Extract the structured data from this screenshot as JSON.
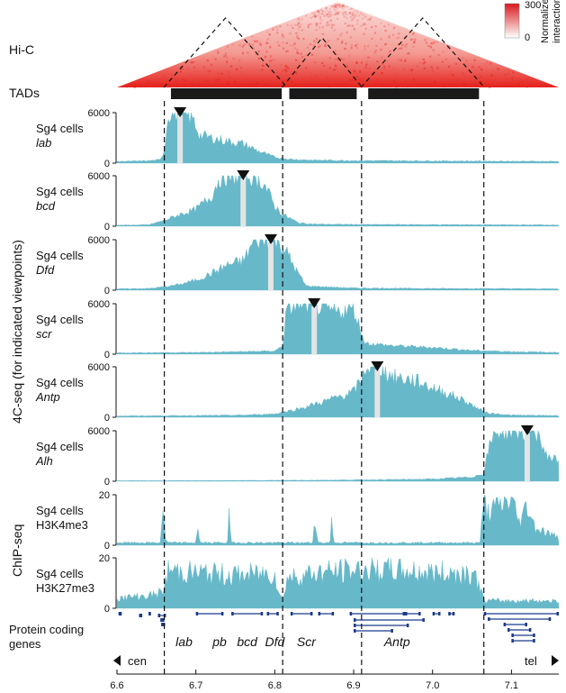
{
  "section_labels": {
    "hic": "Hi-C",
    "tads": "TADs",
    "fourc": "4C-seq (for indicated viewpoints)",
    "chip": "ChIP-seq",
    "genes": [
      "Protein coding",
      "genes"
    ]
  },
  "hic_colorbar": {
    "max_label": "300",
    "min_label": "0",
    "title_lines": [
      "Normalized",
      "interactions"
    ],
    "color_low": "#ffffff",
    "color_high": "#d7191c"
  },
  "colors": {
    "track_fill": "#67b8c9",
    "track_fill_light": "#a9d8e2",
    "viewpoint_gap": "#e4e4e4",
    "tad_bar": "#1a1a1a",
    "hic_red": "#e5211c",
    "saturation_line": "#b65e8a"
  },
  "chart_data": {
    "type": "area",
    "xlabel": "",
    "xlim": [
      6.6,
      7.16
    ],
    "x_ticks": [
      "6.6",
      "6.7",
      "6.8",
      "6.9",
      "7.0",
      "7.1"
    ],
    "x_tick_values": [
      6.6,
      6.7,
      6.8,
      6.9,
      7.0,
      7.1
    ],
    "tad_boundaries": [
      6.66,
      6.81,
      6.91,
      7.065
    ],
    "tads": [
      [
        6.665,
        6.81
      ],
      [
        6.815,
        6.905
      ],
      [
        6.915,
        7.06
      ]
    ],
    "tracks": [
      {
        "cell": "Sg4 cells",
        "target": "lab",
        "group": "4C-seq",
        "ylim": [
          0,
          6000
        ],
        "y_ticks": [
          "0",
          "6000"
        ],
        "viewpoint": 6.68,
        "x": [
          6.6,
          6.62,
          6.64,
          6.655,
          6.66,
          6.665,
          6.68,
          6.695,
          6.705,
          6.72,
          6.74,
          6.76,
          6.78,
          6.8,
          6.82,
          6.85,
          6.9,
          6.95,
          7.0,
          7.05,
          7.1,
          7.16
        ],
        "values": [
          200,
          230,
          280,
          400,
          1500,
          5900,
          6000,
          5500,
          3300,
          3000,
          2600,
          2300,
          1400,
          700,
          450,
          350,
          300,
          280,
          260,
          240,
          220,
          200
        ]
      },
      {
        "cell": "Sg4 cells",
        "target": "bcd",
        "group": "4C-seq",
        "ylim": [
          0,
          6000
        ],
        "y_ticks": [
          "0",
          "6000"
        ],
        "viewpoint": 6.76,
        "x": [
          6.6,
          6.64,
          6.66,
          6.68,
          6.7,
          6.72,
          6.73,
          6.75,
          6.77,
          6.785,
          6.8,
          6.81,
          6.83,
          6.85,
          6.9,
          6.95,
          7.0,
          7.05,
          7.1,
          7.16
        ],
        "values": [
          120,
          160,
          700,
          1400,
          2000,
          3600,
          5800,
          6000,
          6000,
          5300,
          2400,
          1400,
          400,
          250,
          200,
          200,
          180,
          180,
          160,
          150
        ]
      },
      {
        "cell": "Sg4 cells",
        "target": "Dfd",
        "group": "4C-seq",
        "ylim": [
          0,
          6000
        ],
        "y_ticks": [
          "0",
          "6000"
        ],
        "viewpoint": 6.795,
        "x": [
          6.6,
          6.64,
          6.66,
          6.68,
          6.7,
          6.72,
          6.74,
          6.76,
          6.775,
          6.79,
          6.805,
          6.815,
          6.825,
          6.84,
          6.9,
          6.95,
          7.0,
          7.05,
          7.1,
          7.16
        ],
        "values": [
          150,
          200,
          400,
          700,
          1200,
          2000,
          3000,
          3500,
          6000,
          6000,
          5900,
          4500,
          2700,
          500,
          250,
          230,
          200,
          200,
          180,
          160
        ]
      },
      {
        "cell": "Sg4 cells",
        "target": "scr",
        "group": "4C-seq",
        "ylim": [
          0,
          6000
        ],
        "y_ticks": [
          "0",
          "6000"
        ],
        "viewpoint": 6.85,
        "x": [
          6.6,
          6.65,
          6.7,
          6.76,
          6.8,
          6.81,
          6.815,
          6.83,
          6.85,
          6.865,
          6.88,
          6.9,
          6.91,
          6.915,
          6.95,
          7.0,
          7.05,
          7.1,
          7.16
        ],
        "values": [
          150,
          180,
          200,
          300,
          380,
          1000,
          5300,
          6000,
          6000,
          5200,
          5000,
          5500,
          2500,
          1300,
          1000,
          800,
          450,
          300,
          200
        ]
      },
      {
        "cell": "Sg4 cells",
        "target": "Antp",
        "group": "4C-seq",
        "ylim": [
          0,
          6000
        ],
        "y_ticks": [
          "0",
          "6000"
        ],
        "viewpoint": 6.93,
        "x": [
          6.6,
          6.7,
          6.76,
          6.8,
          6.83,
          6.86,
          6.89,
          6.9,
          6.91,
          6.915,
          6.93,
          6.95,
          6.98,
          7.0,
          7.02,
          7.04,
          7.06,
          7.07,
          7.1,
          7.16
        ],
        "values": [
          150,
          200,
          250,
          400,
          1000,
          1800,
          2700,
          3000,
          4500,
          6000,
          6000,
          4800,
          4300,
          3500,
          2800,
          2000,
          900,
          500,
          250,
          200
        ]
      },
      {
        "cell": "Sg4 cells",
        "target": "Alh",
        "group": "4C-seq",
        "ylim": [
          0,
          6000
        ],
        "y_ticks": [
          "0",
          "6000"
        ],
        "viewpoint": 7.12,
        "x": [
          6.6,
          6.7,
          6.8,
          6.9,
          7.0,
          7.05,
          7.065,
          7.07,
          7.08,
          7.1,
          7.12,
          7.135,
          7.14,
          7.15,
          7.16
        ],
        "values": [
          60,
          80,
          100,
          150,
          250,
          500,
          900,
          3500,
          6000,
          6000,
          6000,
          5800,
          3500,
          2800,
          2500
        ]
      },
      {
        "cell": "Sg4 cells",
        "target": "H3K4me3",
        "group": "ChIP-seq",
        "ylim": [
          0,
          20
        ],
        "y_ticks": [
          "0",
          "20"
        ],
        "x": [
          6.6,
          6.655,
          6.658,
          6.661,
          6.664,
          6.7,
          6.702,
          6.705,
          6.74,
          6.742,
          6.745,
          6.848,
          6.851,
          6.855,
          6.87,
          6.872,
          6.875,
          6.9,
          7.06,
          7.065,
          7.07,
          7.1,
          7.11,
          7.12,
          7.13,
          7.16
        ],
        "values": [
          1,
          1,
          16,
          3,
          1,
          1,
          7,
          1,
          1,
          11,
          1,
          1,
          12,
          1,
          1,
          9,
          1,
          1,
          1,
          17,
          13,
          18,
          9,
          16,
          7,
          3
        ]
      },
      {
        "cell": "Sg4 cells",
        "target": "H3K27me3",
        "group": "ChIP-seq",
        "ylim": [
          0,
          20
        ],
        "y_ticks": [
          "0",
          "20"
        ],
        "x": [
          6.6,
          6.64,
          6.655,
          6.66,
          6.665,
          6.7,
          6.75,
          6.8,
          6.805,
          6.81,
          6.815,
          6.85,
          6.9,
          6.95,
          7.0,
          7.05,
          7.06,
          7.065,
          7.1,
          7.16
        ],
        "values": [
          4,
          5,
          6,
          8,
          15,
          14,
          13,
          14,
          6,
          3,
          12,
          14,
          15,
          15,
          14,
          14,
          9,
          3,
          3,
          3
        ]
      }
    ]
  },
  "genes": {
    "labels": [
      "lab",
      "pb",
      "bcd",
      "Dfd",
      "Scr",
      "Antp"
    ],
    "label_x": [
      6.685,
      6.73,
      6.765,
      6.8,
      6.84,
      6.955
    ]
  },
  "axis_ends": {
    "left": "cen",
    "right": "tel"
  }
}
